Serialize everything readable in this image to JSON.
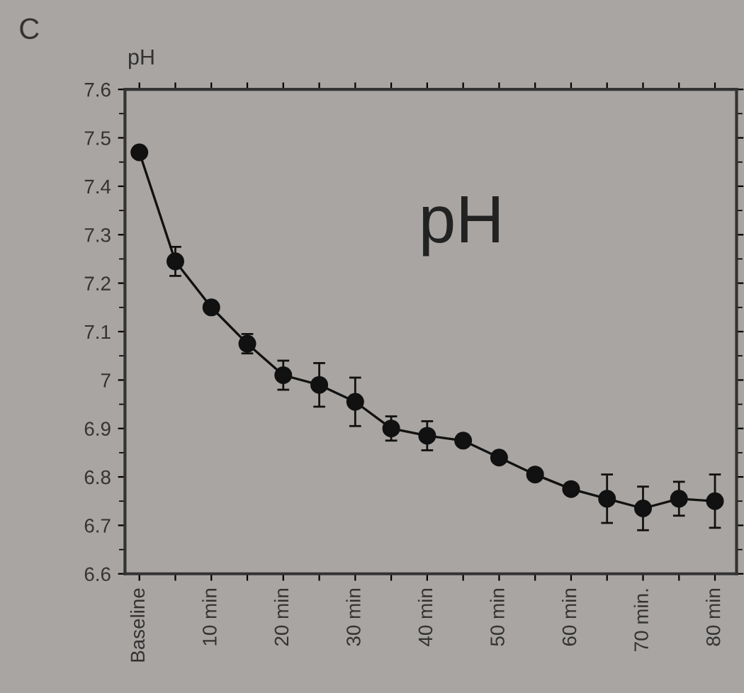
{
  "chart_data": {
    "type": "line",
    "title": "pH",
    "ylabel": "pH",
    "annotations": [
      "C"
    ],
    "categories": [
      "Baseline",
      null,
      "10 min",
      null,
      "20 min",
      null,
      "30 min",
      null,
      "40 min",
      null,
      "50 min",
      null,
      "60 min",
      null,
      "70 min.",
      null,
      "80 min"
    ],
    "series": [
      {
        "color": "#111111",
        "values": [
          7.47,
          7.245,
          7.15,
          7.075,
          7.01,
          6.99,
          6.955,
          6.9,
          6.885,
          6.875,
          6.84,
          6.805,
          6.775,
          6.755,
          6.735,
          6.755,
          6.75
        ],
        "errors": [
          null,
          0.03,
          0.01,
          0.02,
          0.03,
          0.045,
          0.05,
          0.025,
          0.03,
          0.01,
          null,
          null,
          0.01,
          0.05,
          0.045,
          0.035,
          0.055
        ]
      }
    ],
    "ylim": [
      6.6,
      7.6
    ],
    "yticks": [
      6.6,
      6.7,
      6.8,
      6.9,
      {
        "value": 7.0,
        "label": "7"
      },
      7.1,
      7.2,
      7.3,
      7.4,
      7.5,
      7.6
    ],
    "marker": "circle",
    "line_style": "solid",
    "grid": false,
    "legend": false
  }
}
